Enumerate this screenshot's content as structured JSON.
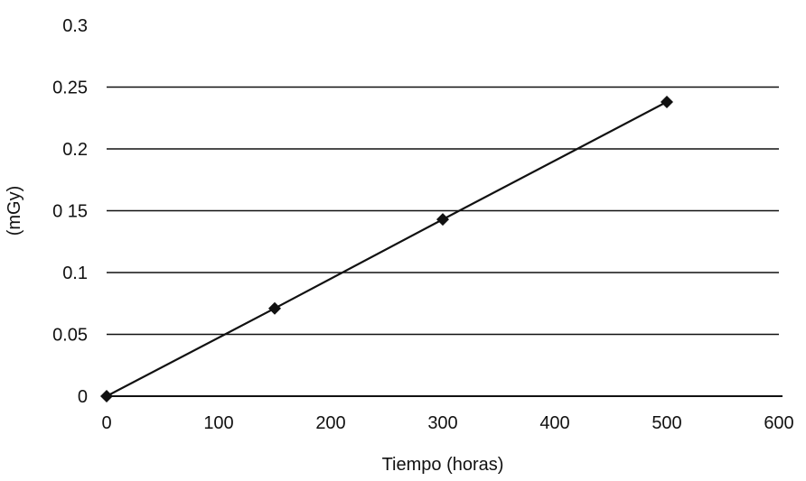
{
  "chart_data": {
    "type": "scatter",
    "title": "",
    "xlabel": "Tiempo (horas)",
    "ylabel": "(mGy)",
    "xlim": [
      0,
      600
    ],
    "ylim": [
      0,
      0.3
    ],
    "x_ticks": [
      "0",
      "100",
      "200",
      "300",
      "400",
      "500",
      "600"
    ],
    "x_tick_values": [
      0,
      100,
      200,
      300,
      400,
      500,
      600
    ],
    "y_ticks": [
      "0",
      "0.05",
      "0.1",
      "0 15",
      "0.2",
      "0.25",
      "0.3"
    ],
    "y_tick_values": [
      0,
      0.05,
      0.1,
      0.15,
      0.2,
      0.25,
      0.3
    ],
    "grid": "horizontal",
    "legend": "none",
    "series": [
      {
        "x": [
          0,
          150,
          300,
          500
        ],
        "y": [
          0,
          0.071,
          0.143,
          0.238
        ],
        "marker": "diamond",
        "line": "linear-fit",
        "color": "#111111"
      }
    ],
    "colors": {
      "axis": "#111111",
      "grid": "#111111",
      "series": "#111111",
      "background": "#ffffff"
    }
  }
}
